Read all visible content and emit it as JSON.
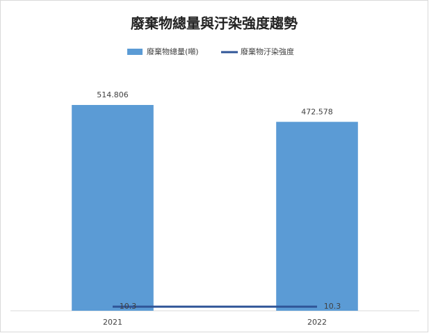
{
  "chart_data": {
    "type": "bar",
    "title": "廢棄物總量與汙染強度趨勢",
    "categories": [
      "2021",
      "2022"
    ],
    "ylim": [
      0,
      600
    ],
    "series": [
      {
        "name": "廢棄物總量(噸)",
        "type": "bar",
        "color": "#5b9bd5",
        "values": [
          514.806,
          472.578
        ]
      },
      {
        "name": "廢棄物汙染強度",
        "type": "line",
        "color": "#2f5597",
        "values": [
          10.3,
          10.3
        ]
      }
    ]
  }
}
